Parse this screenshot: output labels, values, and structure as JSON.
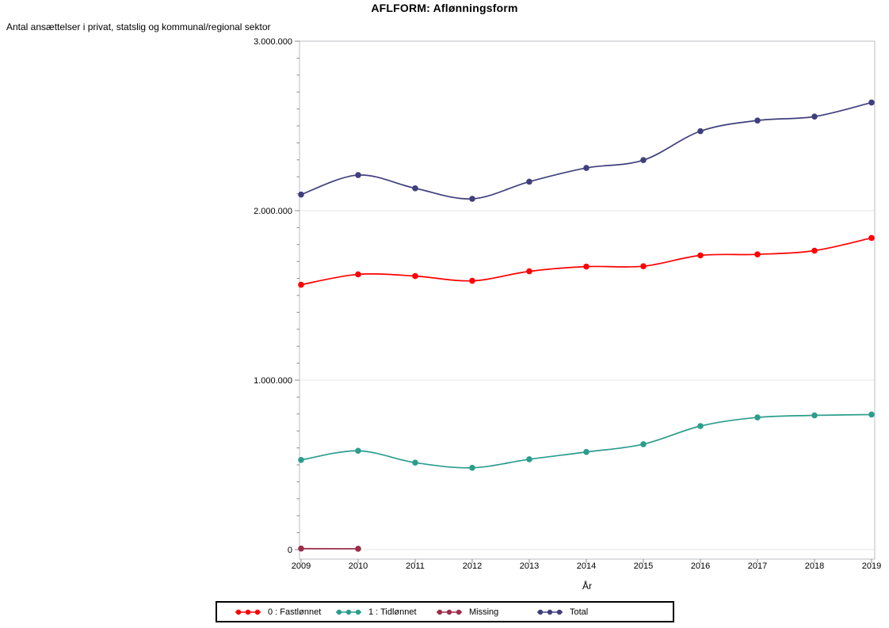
{
  "chart_data": {
    "type": "line",
    "title": "AFLFORM: Aflønningsform",
    "xlabel": "År",
    "ylabel": "Antal ansættelser i privat, statslig og kommunal/regional sektor",
    "x": [
      2009,
      2010,
      2011,
      2012,
      2013,
      2014,
      2015,
      2016,
      2017,
      2018,
      2019
    ],
    "ylim": [
      0,
      3000000
    ],
    "grid": "horizontal-major",
    "legend_position": "bottom-center",
    "y_ticks": {
      "values": [
        0,
        1000000,
        2000000,
        3000000
      ],
      "labels": [
        "0",
        "1.000.000",
        "2.000.000",
        "3.000.000"
      ],
      "minor_step": 100000
    },
    "series": [
      {
        "name": "0 : Fastlønnet",
        "color": "#fe0000",
        "values": [
          1563000,
          1624000,
          1614000,
          1586000,
          1642000,
          1670000,
          1672000,
          1736000,
          1742000,
          1764000,
          1839000
        ]
      },
      {
        "name": "1 : Tidlønnet",
        "color": "#2c9d8d",
        "values": [
          529000,
          583000,
          513000,
          483000,
          533000,
          576000,
          622000,
          729000,
          780000,
          792000,
          797000
        ]
      },
      {
        "name": "Missing",
        "color": "#9c2d4a",
        "values": [
          6000,
          5000,
          null,
          null,
          null,
          null,
          null,
          null,
          null,
          null,
          null
        ]
      },
      {
        "name": "Total",
        "color": "#3f3f7d",
        "values": [
          2095000,
          2210000,
          2132000,
          2070000,
          2171000,
          2252000,
          2298000,
          2469000,
          2532000,
          2555000,
          2638000
        ]
      }
    ]
  }
}
